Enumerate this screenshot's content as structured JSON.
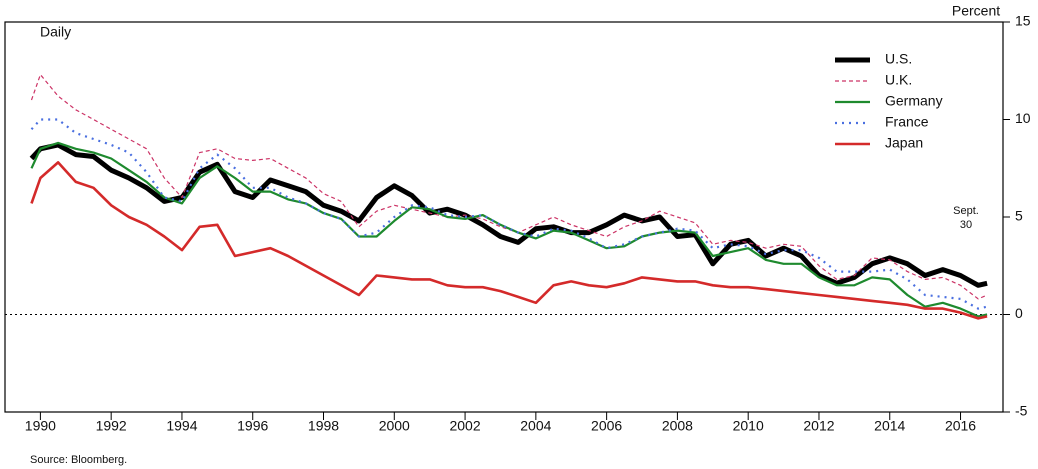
{
  "chart_data": {
    "type": "line",
    "left_label": "Daily",
    "right_label": "Percent",
    "annotation": [
      "Sept.",
      "30"
    ],
    "source": "Source:  Bloomberg.",
    "xlim": [
      1989,
      2017.2
    ],
    "xticks": [
      1990,
      1992,
      1994,
      1996,
      1998,
      2000,
      2002,
      2004,
      2006,
      2008,
      2010,
      2012,
      2014,
      2016
    ],
    "ylim": [
      -5,
      15
    ],
    "yticks": [
      -5,
      0,
      5,
      10,
      15
    ],
    "reference_line": 0,
    "legend": "top-right",
    "x": [
      1989.75,
      1990,
      1990.5,
      1991,
      1991.5,
      1992,
      1992.5,
      1993,
      1993.5,
      1994,
      1994.5,
      1995,
      1995.5,
      1996,
      1996.5,
      1997,
      1997.5,
      1998,
      1998.5,
      1999,
      1999.5,
      2000,
      2000.5,
      2001,
      2001.5,
      2002,
      2002.5,
      2003,
      2003.5,
      2004,
      2004.5,
      2005,
      2005.5,
      2006,
      2006.5,
      2007,
      2007.5,
      2008,
      2008.5,
      2009,
      2009.5,
      2010,
      2010.5,
      2011,
      2011.5,
      2012,
      2012.5,
      2013,
      2013.5,
      2014,
      2014.5,
      2015,
      2015.5,
      2016,
      2016.5,
      2016.75
    ],
    "series": [
      {
        "name": "U.S.",
        "color": "#000000",
        "width": 5,
        "style": "solid",
        "values": [
          8.0,
          8.5,
          8.7,
          8.2,
          8.1,
          7.4,
          7.0,
          6.5,
          5.8,
          6.0,
          7.3,
          7.7,
          6.3,
          6.0,
          6.9,
          6.6,
          6.3,
          5.6,
          5.3,
          4.8,
          6.0,
          6.6,
          6.1,
          5.2,
          5.4,
          5.1,
          4.6,
          4.0,
          3.7,
          4.4,
          4.5,
          4.2,
          4.2,
          4.6,
          5.1,
          4.8,
          5.0,
          4.0,
          4.1,
          2.6,
          3.6,
          3.8,
          3.0,
          3.4,
          3.0,
          2.0,
          1.6,
          1.9,
          2.6,
          2.9,
          2.6,
          2.0,
          2.3,
          2.0,
          1.5,
          1.6
        ]
      },
      {
        "name": "U.K.",
        "color": "#cc3366",
        "width": 1.2,
        "style": "dashed",
        "values": [
          11.0,
          12.3,
          11.2,
          10.5,
          10.0,
          9.5,
          9.0,
          8.5,
          7.0,
          6.0,
          8.3,
          8.5,
          8.0,
          7.9,
          8.0,
          7.5,
          7.0,
          6.2,
          5.8,
          4.5,
          5.3,
          5.6,
          5.4,
          5.2,
          5.0,
          5.1,
          4.9,
          4.5,
          4.2,
          4.6,
          5.0,
          4.6,
          4.3,
          4.0,
          4.5,
          4.8,
          5.3,
          5.0,
          4.7,
          3.6,
          3.8,
          3.7,
          3.4,
          3.6,
          3.5,
          2.5,
          1.8,
          2.0,
          2.9,
          2.8,
          2.2,
          1.8,
          1.9,
          1.5,
          0.8,
          1.0
        ]
      },
      {
        "name": "Germany",
        "color": "#1e8a2e",
        "width": 2.2,
        "style": "solid",
        "values": [
          7.5,
          8.5,
          8.8,
          8.5,
          8.3,
          8.0,
          7.4,
          6.8,
          6.0,
          5.7,
          7.0,
          7.6,
          7.0,
          6.3,
          6.3,
          5.9,
          5.7,
          5.2,
          4.9,
          4.0,
          4.0,
          4.8,
          5.5,
          5.4,
          5.0,
          4.9,
          5.1,
          4.6,
          4.2,
          3.9,
          4.3,
          4.2,
          3.8,
          3.4,
          3.5,
          4.0,
          4.2,
          4.3,
          4.2,
          3.0,
          3.2,
          3.4,
          2.8,
          2.6,
          2.6,
          1.9,
          1.5,
          1.5,
          1.9,
          1.8,
          1.0,
          0.4,
          0.6,
          0.3,
          -0.1,
          0.0
        ]
      },
      {
        "name": "France",
        "color": "#4a6fe0",
        "width": 2.2,
        "style": "dotted",
        "values": [
          9.5,
          10.0,
          10.0,
          9.3,
          9.0,
          8.7,
          8.3,
          7.3,
          6.0,
          5.8,
          7.5,
          8.2,
          7.5,
          6.5,
          6.5,
          6.0,
          5.7,
          5.2,
          4.9,
          4.0,
          4.2,
          5.0,
          5.6,
          5.5,
          5.1,
          5.0,
          5.1,
          4.6,
          4.2,
          4.0,
          4.4,
          4.3,
          3.9,
          3.4,
          3.6,
          4.0,
          4.2,
          4.4,
          4.3,
          3.4,
          3.6,
          3.5,
          3.1,
          3.3,
          3.3,
          2.9,
          2.2,
          2.2,
          2.2,
          2.3,
          1.8,
          1.0,
          0.9,
          0.8,
          0.3,
          0.4
        ]
      },
      {
        "name": "Japan",
        "color": "#d42a2a",
        "width": 2.6,
        "style": "solid",
        "values": [
          5.7,
          7.0,
          7.8,
          6.8,
          6.5,
          5.6,
          5.0,
          4.6,
          4.0,
          3.3,
          4.5,
          4.6,
          3.0,
          3.2,
          3.4,
          3.0,
          2.5,
          2.0,
          1.5,
          1.0,
          2.0,
          1.9,
          1.8,
          1.8,
          1.5,
          1.4,
          1.4,
          1.2,
          0.9,
          0.6,
          1.5,
          1.7,
          1.5,
          1.4,
          1.6,
          1.9,
          1.8,
          1.7,
          1.7,
          1.5,
          1.4,
          1.4,
          1.3,
          1.2,
          1.1,
          1.0,
          0.9,
          0.8,
          0.7,
          0.6,
          0.5,
          0.3,
          0.3,
          0.1,
          -0.2,
          -0.1
        ]
      }
    ]
  }
}
